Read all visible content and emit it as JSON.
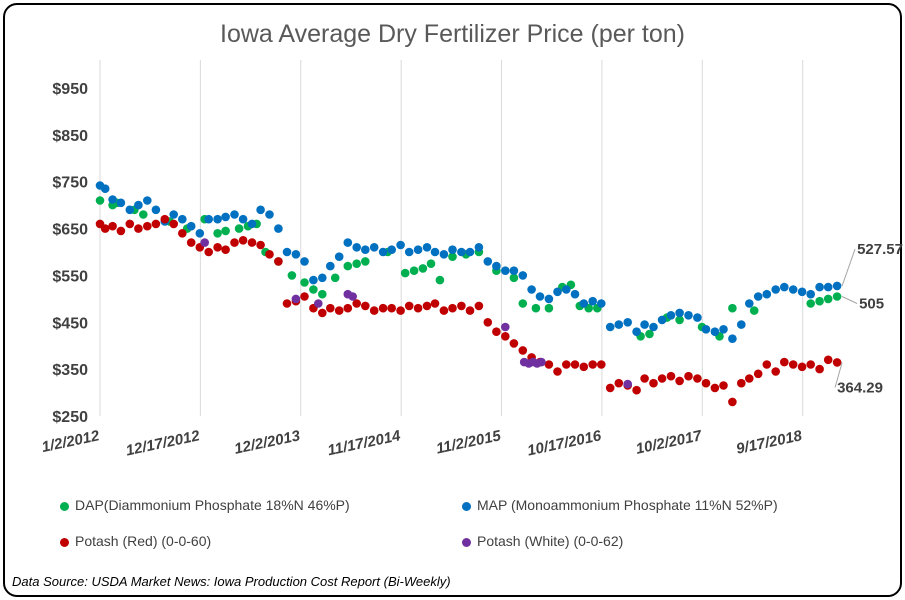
{
  "chart_data": {
    "type": "scatter",
    "title": "Iowa Average Dry Fertilizer Price (per ton)",
    "xlabel": "",
    "ylabel": "",
    "ylim": [
      250,
      950
    ],
    "xlim": [
      "2012-01-02",
      "2019-03-01"
    ],
    "y_ticks": [
      "$250",
      "$350",
      "$450",
      "$550",
      "$650",
      "$750",
      "$850",
      "$950"
    ],
    "x_ticks": [
      "1/2/2012",
      "12/17/2012",
      "12/2/2013",
      "11/17/2014",
      "11/2/2015",
      "10/17/2016",
      "10/2/2017",
      "9/17/2018"
    ],
    "grid": "vertical",
    "legend_position": "bottom",
    "series": [
      {
        "name": "DAP(Diammonium Phosphate 18%N 46%P)",
        "color": "#00b050",
        "points": [
          [
            "2012-01-02",
            710
          ],
          [
            "2012-02-15",
            700
          ],
          [
            "2012-03-01",
            705
          ],
          [
            "2012-05-01",
            690
          ],
          [
            "2012-06-01",
            680
          ],
          [
            "2012-09-01",
            665
          ],
          [
            "2012-11-01",
            650
          ],
          [
            "2013-01-01",
            670
          ],
          [
            "2013-02-15",
            640
          ],
          [
            "2013-03-15",
            645
          ],
          [
            "2013-05-01",
            650
          ],
          [
            "2013-06-01",
            655
          ],
          [
            "2013-07-01",
            660
          ],
          [
            "2013-08-01",
            600
          ],
          [
            "2013-09-15",
            580
          ],
          [
            "2013-11-01",
            550
          ],
          [
            "2013-12-15",
            535
          ],
          [
            "2014-01-15",
            520
          ],
          [
            "2014-02-15",
            510
          ],
          [
            "2014-04-01",
            545
          ],
          [
            "2014-05-15",
            570
          ],
          [
            "2014-06-15",
            575
          ],
          [
            "2014-07-15",
            580
          ],
          [
            "2014-10-01",
            600
          ],
          [
            "2014-12-01",
            555
          ],
          [
            "2015-01-01",
            560
          ],
          [
            "2015-02-01",
            565
          ],
          [
            "2015-03-01",
            575
          ],
          [
            "2015-04-01",
            540
          ],
          [
            "2015-05-15",
            590
          ],
          [
            "2015-07-01",
            595
          ],
          [
            "2015-08-15",
            600
          ],
          [
            "2015-10-15",
            560
          ],
          [
            "2015-12-15",
            545
          ],
          [
            "2016-01-15",
            490
          ],
          [
            "2016-03-01",
            480
          ],
          [
            "2016-04-15",
            480
          ],
          [
            "2016-06-01",
            525
          ],
          [
            "2016-07-01",
            530
          ],
          [
            "2016-08-01",
            485
          ],
          [
            "2016-09-01",
            480
          ],
          [
            "2016-10-01",
            480
          ],
          [
            "2017-03-01",
            420
          ],
          [
            "2017-04-01",
            425
          ],
          [
            "2017-06-01",
            460
          ],
          [
            "2017-07-15",
            455
          ],
          [
            "2017-10-01",
            440
          ],
          [
            "2017-12-01",
            420
          ],
          [
            "2018-01-15",
            480
          ],
          [
            "2018-04-01",
            475
          ],
          [
            "2018-10-15",
            490
          ],
          [
            "2018-11-15",
            495
          ],
          [
            "2018-12-15",
            500
          ],
          [
            "2019-01-15",
            505
          ]
        ]
      },
      {
        "name": "MAP (Monoammonium Phosphate 11%N 52%P)",
        "color": "#0070c0",
        "points": [
          [
            "2012-01-02",
            742
          ],
          [
            "2012-01-20",
            735
          ],
          [
            "2012-02-15",
            712
          ],
          [
            "2012-03-15",
            705
          ],
          [
            "2012-04-15",
            690
          ],
          [
            "2012-05-15",
            700
          ],
          [
            "2012-06-15",
            710
          ],
          [
            "2012-07-15",
            690
          ],
          [
            "2012-08-15",
            665
          ],
          [
            "2012-09-15",
            680
          ],
          [
            "2012-10-15",
            670
          ],
          [
            "2012-11-15",
            655
          ],
          [
            "2012-12-15",
            640
          ],
          [
            "2013-01-15",
            670
          ],
          [
            "2013-02-15",
            670
          ],
          [
            "2013-03-15",
            675
          ],
          [
            "2013-04-15",
            680
          ],
          [
            "2013-05-15",
            670
          ],
          [
            "2013-06-15",
            660
          ],
          [
            "2013-07-15",
            690
          ],
          [
            "2013-08-15",
            680
          ],
          [
            "2013-09-15",
            650
          ],
          [
            "2013-10-15",
            600
          ],
          [
            "2013-11-15",
            595
          ],
          [
            "2013-12-15",
            580
          ],
          [
            "2014-01-15",
            540
          ],
          [
            "2014-02-15",
            545
          ],
          [
            "2014-03-15",
            570
          ],
          [
            "2014-04-15",
            590
          ],
          [
            "2014-05-15",
            620
          ],
          [
            "2014-06-15",
            610
          ],
          [
            "2014-07-15",
            605
          ],
          [
            "2014-08-15",
            610
          ],
          [
            "2014-09-15",
            600
          ],
          [
            "2014-10-15",
            605
          ],
          [
            "2014-11-15",
            615
          ],
          [
            "2014-12-15",
            600
          ],
          [
            "2015-01-15",
            605
          ],
          [
            "2015-02-15",
            610
          ],
          [
            "2015-03-15",
            600
          ],
          [
            "2015-04-15",
            595
          ],
          [
            "2015-05-15",
            605
          ],
          [
            "2015-06-15",
            600
          ],
          [
            "2015-07-15",
            600
          ],
          [
            "2015-08-15",
            610
          ],
          [
            "2015-09-15",
            580
          ],
          [
            "2015-10-15",
            570
          ],
          [
            "2015-11-15",
            560
          ],
          [
            "2015-12-15",
            560
          ],
          [
            "2016-01-15",
            550
          ],
          [
            "2016-02-15",
            520
          ],
          [
            "2016-03-15",
            505
          ],
          [
            "2016-04-15",
            500
          ],
          [
            "2016-05-15",
            515
          ],
          [
            "2016-06-15",
            520
          ],
          [
            "2016-07-15",
            510
          ],
          [
            "2016-08-15",
            490
          ],
          [
            "2016-09-15",
            495
          ],
          [
            "2016-10-15",
            490
          ],
          [
            "2016-11-15",
            440
          ],
          [
            "2016-12-15",
            445
          ],
          [
            "2017-01-15",
            450
          ],
          [
            "2017-02-15",
            430
          ],
          [
            "2017-03-15",
            445
          ],
          [
            "2017-04-15",
            440
          ],
          [
            "2017-05-15",
            455
          ],
          [
            "2017-06-15",
            465
          ],
          [
            "2017-07-15",
            470
          ],
          [
            "2017-08-15",
            465
          ],
          [
            "2017-09-15",
            460
          ],
          [
            "2017-10-15",
            435
          ],
          [
            "2017-11-15",
            430
          ],
          [
            "2017-12-15",
            435
          ],
          [
            "2018-01-15",
            415
          ],
          [
            "2018-02-15",
            445
          ],
          [
            "2018-03-15",
            490
          ],
          [
            "2018-04-15",
            505
          ],
          [
            "2018-05-15",
            510
          ],
          [
            "2018-06-15",
            520
          ],
          [
            "2018-07-15",
            525
          ],
          [
            "2018-08-15",
            520
          ],
          [
            "2018-09-15",
            515
          ],
          [
            "2018-10-15",
            510
          ],
          [
            "2018-11-15",
            525
          ],
          [
            "2018-12-15",
            525
          ],
          [
            "2019-01-15",
            527.57
          ]
        ]
      },
      {
        "name": "Potash (Red) (0-0-60)",
        "color": "#c00000",
        "points": [
          [
            "2012-01-02",
            660
          ],
          [
            "2012-01-20",
            650
          ],
          [
            "2012-02-15",
            655
          ],
          [
            "2012-03-15",
            645
          ],
          [
            "2012-04-15",
            660
          ],
          [
            "2012-05-15",
            650
          ],
          [
            "2012-06-15",
            655
          ],
          [
            "2012-07-15",
            660
          ],
          [
            "2012-08-15",
            670
          ],
          [
            "2012-09-15",
            660
          ],
          [
            "2012-10-15",
            640
          ],
          [
            "2012-11-15",
            620
          ],
          [
            "2012-12-15",
            610
          ],
          [
            "2013-01-15",
            600
          ],
          [
            "2013-02-15",
            610
          ],
          [
            "2013-03-15",
            605
          ],
          [
            "2013-04-15",
            620
          ],
          [
            "2013-05-15",
            625
          ],
          [
            "2013-06-15",
            620
          ],
          [
            "2013-07-15",
            615
          ],
          [
            "2013-08-15",
            595
          ],
          [
            "2013-09-15",
            580
          ],
          [
            "2013-10-15",
            490
          ],
          [
            "2013-11-15",
            495
          ],
          [
            "2013-12-15",
            505
          ],
          [
            "2014-01-15",
            480
          ],
          [
            "2014-02-15",
            470
          ],
          [
            "2014-03-15",
            480
          ],
          [
            "2014-04-15",
            475
          ],
          [
            "2014-05-15",
            480
          ],
          [
            "2014-06-15",
            490
          ],
          [
            "2014-07-15",
            485
          ],
          [
            "2014-08-15",
            475
          ],
          [
            "2014-09-15",
            480
          ],
          [
            "2014-10-15",
            480
          ],
          [
            "2014-11-15",
            475
          ],
          [
            "2014-12-15",
            485
          ],
          [
            "2015-01-15",
            480
          ],
          [
            "2015-02-15",
            485
          ],
          [
            "2015-03-15",
            490
          ],
          [
            "2015-04-15",
            475
          ],
          [
            "2015-05-15",
            480
          ],
          [
            "2015-06-15",
            485
          ],
          [
            "2015-07-15",
            475
          ],
          [
            "2015-08-15",
            485
          ],
          [
            "2015-09-15",
            450
          ],
          [
            "2015-10-15",
            430
          ],
          [
            "2015-11-15",
            420
          ],
          [
            "2015-12-15",
            405
          ],
          [
            "2016-01-15",
            390
          ],
          [
            "2016-02-15",
            375
          ],
          [
            "2016-03-15",
            365
          ],
          [
            "2016-04-15",
            360
          ],
          [
            "2016-05-15",
            345
          ],
          [
            "2016-06-15",
            360
          ],
          [
            "2016-07-15",
            360
          ],
          [
            "2016-08-15",
            355
          ],
          [
            "2016-09-15",
            360
          ],
          [
            "2016-10-15",
            360
          ],
          [
            "2016-11-15",
            310
          ],
          [
            "2016-12-15",
            320
          ],
          [
            "2017-01-15",
            315
          ],
          [
            "2017-02-15",
            305
          ],
          [
            "2017-03-15",
            330
          ],
          [
            "2017-04-15",
            320
          ],
          [
            "2017-05-15",
            330
          ],
          [
            "2017-06-15",
            335
          ],
          [
            "2017-07-15",
            325
          ],
          [
            "2017-08-15",
            335
          ],
          [
            "2017-09-15",
            330
          ],
          [
            "2017-10-15",
            320
          ],
          [
            "2017-11-15",
            310
          ],
          [
            "2017-12-15",
            315
          ],
          [
            "2018-01-15",
            280
          ],
          [
            "2018-02-15",
            320
          ],
          [
            "2018-03-15",
            330
          ],
          [
            "2018-04-15",
            340
          ],
          [
            "2018-05-15",
            360
          ],
          [
            "2018-06-15",
            345
          ],
          [
            "2018-07-15",
            365
          ],
          [
            "2018-08-15",
            360
          ],
          [
            "2018-09-15",
            355
          ],
          [
            "2018-10-15",
            360
          ],
          [
            "2018-11-15",
            350
          ],
          [
            "2018-12-15",
            370
          ],
          [
            "2019-01-15",
            364.29
          ]
        ]
      },
      {
        "name": "Potash (White) (0-0-62)",
        "color": "#7030a0",
        "points": [
          [
            "2013-01-01",
            620
          ],
          [
            "2013-11-15",
            500
          ],
          [
            "2014-02-01",
            490
          ],
          [
            "2014-05-15",
            510
          ],
          [
            "2014-06-01",
            505
          ],
          [
            "2015-11-15",
            440
          ],
          [
            "2016-01-20",
            365
          ],
          [
            "2016-02-05",
            362
          ],
          [
            "2016-02-20",
            365
          ],
          [
            "2016-03-05",
            362
          ],
          [
            "2016-03-20",
            365
          ],
          [
            "2017-01-15",
            318
          ]
        ]
      }
    ],
    "annotations": [
      {
        "label": "527.57",
        "series": "MAP (Monoammonium Phosphate 11%N 52%P)"
      },
      {
        "label": "505",
        "series": "DAP(Diammonium Phosphate 18%N 46%P)"
      },
      {
        "label": "364.29",
        "series": "Potash (Red) (0-0-60)"
      }
    ]
  },
  "source_note": "Data Source: USDA Market News: Iowa Production Cost Report (Bi-Weekly)"
}
